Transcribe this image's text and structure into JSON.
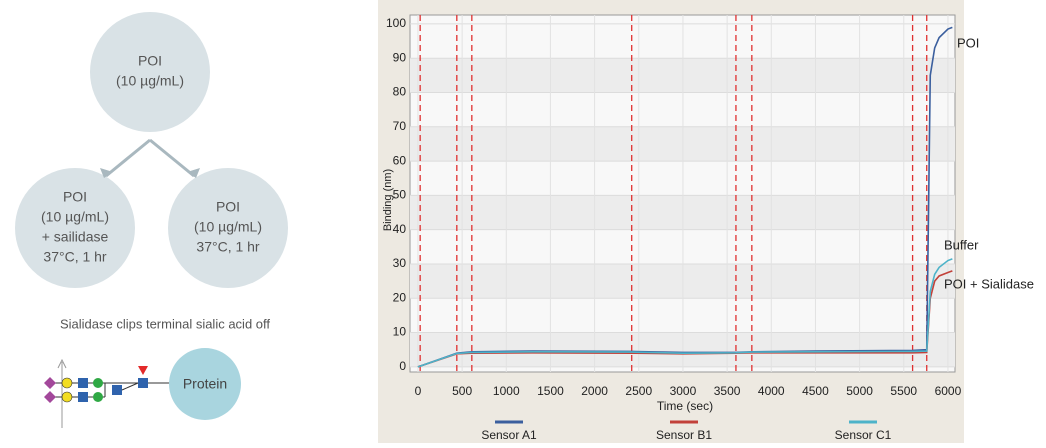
{
  "diagram": {
    "top": [
      "POI",
      "(10 µg/mL)"
    ],
    "left": [
      "POI",
      "(10 µg/mL)",
      "+ sailidase",
      "37°C, 1 hr"
    ],
    "right": [
      "POI",
      "(10 µg/mL)",
      "37°C, 1 hr"
    ],
    "caption": "Sialidase clips terminal sialic acid off",
    "protein": "Protein"
  },
  "chart_data": {
    "type": "line",
    "x_label": "Time (sec)",
    "y_label": "Binding (nm)",
    "x": [
      0,
      440,
      610,
      1300,
      2420,
      3000,
      3600,
      3780,
      4500,
      5600,
      5760,
      5800,
      5850,
      5900,
      6000,
      6050
    ],
    "series": [
      {
        "name": "Sensor A1",
        "color": "#3b5f9e",
        "values": [
          0,
          4,
          4.4,
          4.6,
          4.5,
          4.2,
          4.2,
          4.4,
          4.6,
          4.8,
          5,
          85,
          93,
          96,
          98.5,
          99
        ]
      },
      {
        "name": "Sensor B1",
        "color": "#c2413a",
        "values": [
          0,
          3.8,
          4,
          4.1,
          4,
          3.8,
          4,
          4.1,
          4.1,
          4.1,
          4.2,
          20,
          25,
          26.5,
          27.5,
          28
        ]
      },
      {
        "name": "Sensor C1",
        "color": "#4db3c9",
        "values": [
          0,
          3.9,
          4.2,
          4.4,
          4.3,
          4,
          4.1,
          4.3,
          4.4,
          4.5,
          4.6,
          22,
          27,
          29,
          31,
          31.5
        ]
      }
    ],
    "annotations": [
      "POI",
      "Buffer",
      "POI + Sialidase"
    ],
    "markers": [
      25,
      440,
      610,
      2420,
      3600,
      3780,
      5600,
      5760
    ],
    "marker_color": "#e03030",
    "xlim": [
      -90,
      6080
    ],
    "ylim": [
      -1.5,
      102.6
    ],
    "xticks": [
      0,
      500,
      1000,
      1500,
      2000,
      2500,
      3000,
      3500,
      4000,
      4500,
      5000,
      5500,
      6000
    ],
    "yticks": [
      0,
      10,
      20,
      30,
      40,
      50,
      60,
      70,
      80,
      90,
      100
    ],
    "grid": true
  }
}
